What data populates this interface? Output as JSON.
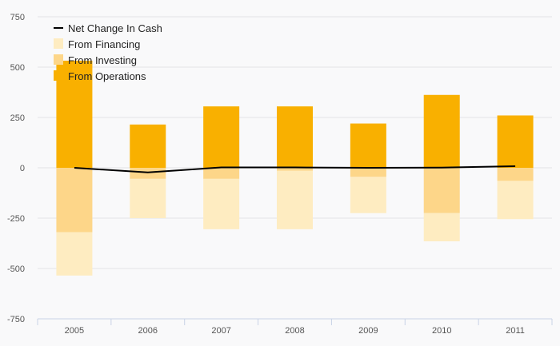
{
  "chart_data": {
    "type": "bar",
    "stacked": true,
    "categories": [
      "2005",
      "2006",
      "2007",
      "2008",
      "2009",
      "2010",
      "2011"
    ],
    "ylim": [
      -750,
      750
    ],
    "yticks": [
      750,
      500,
      250,
      0,
      -250,
      -500,
      -750
    ],
    "ytick_labels": [
      "750",
      "500",
      "250",
      "0",
      "-250",
      "-500",
      "-750"
    ],
    "grid": true,
    "legend_position": "top-left",
    "series": [
      {
        "name": "From Operations",
        "kind": "bar",
        "color": "#f9b000",
        "values": [
          532,
          215,
          305,
          305,
          220,
          362,
          260
        ]
      },
      {
        "name": "From Investing",
        "kind": "bar",
        "color": "#fdd689",
        "values": [
          -320,
          -55,
          -55,
          -15,
          -45,
          -225,
          -65
        ]
      },
      {
        "name": "From Financing",
        "kind": "bar",
        "color": "#feecc1",
        "values": [
          -215,
          -195,
          -250,
          -290,
          -180,
          -140,
          -190
        ]
      },
      {
        "name": "Net Change In Cash",
        "kind": "line",
        "color": "#000000",
        "values": [
          0,
          -23,
          2,
          2,
          0,
          1,
          8
        ]
      }
    ],
    "legend_order": [
      "Net Change In Cash",
      "From Financing",
      "From Investing",
      "From Operations"
    ]
  }
}
